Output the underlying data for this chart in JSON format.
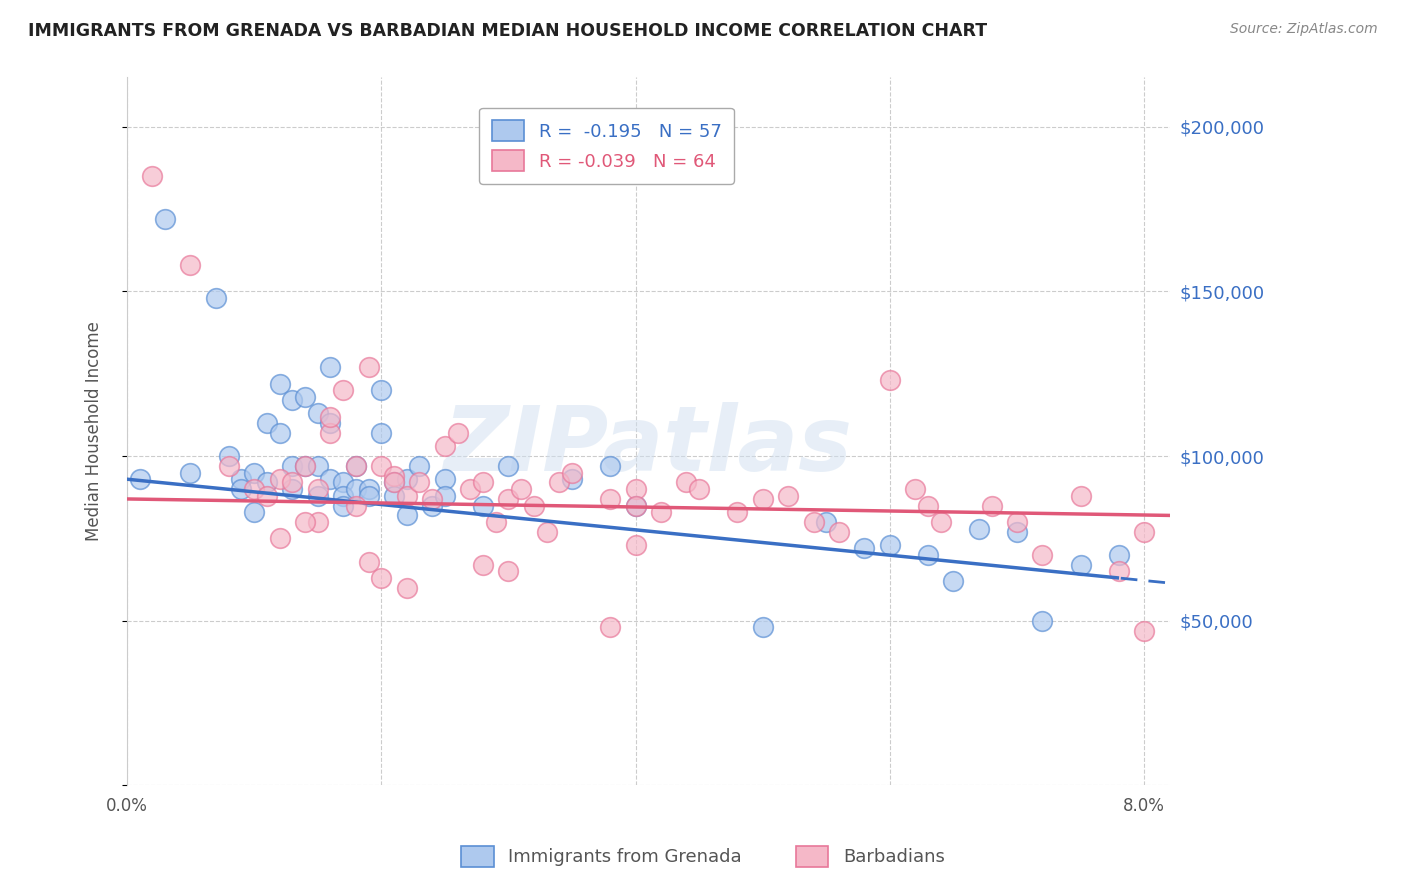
{
  "title": "IMMIGRANTS FROM GRENADA VS BARBADIAN MEDIAN HOUSEHOLD INCOME CORRELATION CHART",
  "source": "Source: ZipAtlas.com",
  "ylabel": "Median Household Income",
  "legend_label1": "Immigrants from Grenada",
  "legend_label2": "Barbadians",
  "R1": -0.195,
  "N1": 57,
  "R2": -0.039,
  "N2": 64,
  "watermark": "ZIPatlas",
  "blue_fill": "#aec9ee",
  "pink_fill": "#f5b8c8",
  "blue_edge": "#5b8fd4",
  "pink_edge": "#e8789a",
  "blue_line": "#3a6fc4",
  "pink_line": "#e05878",
  "scatter1_x": [
    0.001,
    0.003,
    0.005,
    0.007,
    0.008,
    0.009,
    0.009,
    0.01,
    0.01,
    0.011,
    0.011,
    0.012,
    0.012,
    0.013,
    0.013,
    0.013,
    0.014,
    0.014,
    0.015,
    0.015,
    0.015,
    0.016,
    0.016,
    0.016,
    0.017,
    0.017,
    0.017,
    0.018,
    0.018,
    0.019,
    0.019,
    0.02,
    0.02,
    0.021,
    0.021,
    0.022,
    0.022,
    0.023,
    0.024,
    0.025,
    0.025,
    0.028,
    0.03,
    0.035,
    0.038,
    0.04,
    0.05,
    0.055,
    0.058,
    0.06,
    0.063,
    0.065,
    0.067,
    0.07,
    0.072,
    0.075,
    0.078
  ],
  "scatter1_y": [
    93000,
    172000,
    95000,
    148000,
    100000,
    93000,
    90000,
    95000,
    83000,
    110000,
    92000,
    122000,
    107000,
    117000,
    97000,
    90000,
    118000,
    97000,
    113000,
    97000,
    88000,
    127000,
    110000,
    93000,
    92000,
    88000,
    85000,
    97000,
    90000,
    90000,
    88000,
    120000,
    107000,
    92000,
    88000,
    93000,
    82000,
    97000,
    85000,
    93000,
    88000,
    85000,
    97000,
    93000,
    97000,
    85000,
    48000,
    80000,
    72000,
    73000,
    70000,
    62000,
    78000,
    77000,
    50000,
    67000,
    70000
  ],
  "scatter2_x": [
    0.002,
    0.005,
    0.008,
    0.01,
    0.011,
    0.012,
    0.013,
    0.014,
    0.015,
    0.016,
    0.016,
    0.017,
    0.018,
    0.019,
    0.02,
    0.021,
    0.021,
    0.022,
    0.023,
    0.024,
    0.025,
    0.026,
    0.027,
    0.028,
    0.029,
    0.03,
    0.031,
    0.032,
    0.033,
    0.034,
    0.035,
    0.038,
    0.04,
    0.04,
    0.042,
    0.044,
    0.045,
    0.048,
    0.05,
    0.052,
    0.054,
    0.056,
    0.06,
    0.062,
    0.063,
    0.064,
    0.068,
    0.07,
    0.072,
    0.075,
    0.078,
    0.08,
    0.04,
    0.028,
    0.02,
    0.03,
    0.022,
    0.015,
    0.018,
    0.014,
    0.012,
    0.019,
    0.038,
    0.08
  ],
  "scatter2_y": [
    185000,
    158000,
    97000,
    90000,
    88000,
    93000,
    92000,
    97000,
    90000,
    107000,
    112000,
    120000,
    97000,
    127000,
    97000,
    94000,
    92000,
    88000,
    92000,
    87000,
    103000,
    107000,
    90000,
    92000,
    80000,
    87000,
    90000,
    85000,
    77000,
    92000,
    95000,
    87000,
    90000,
    85000,
    83000,
    92000,
    90000,
    83000,
    87000,
    88000,
    80000,
    77000,
    123000,
    90000,
    85000,
    80000,
    85000,
    80000,
    70000,
    88000,
    65000,
    77000,
    73000,
    67000,
    63000,
    65000,
    60000,
    80000,
    85000,
    80000,
    75000,
    68000,
    48000,
    47000
  ],
  "ylim": [
    0,
    215000
  ],
  "xlim": [
    0,
    0.082
  ],
  "yticks": [
    0,
    50000,
    100000,
    150000,
    200000
  ],
  "ytick_labels": [
    "",
    "$50,000",
    "$100,000",
    "$150,000",
    "$200,000"
  ],
  "xticks": [
    0.0,
    0.02,
    0.04,
    0.06,
    0.08
  ],
  "xtick_labels": [
    "0.0%",
    "",
    "",
    "",
    "8.0%"
  ]
}
